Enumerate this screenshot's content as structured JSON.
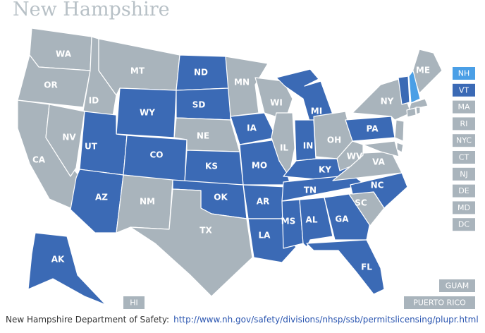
{
  "title": "New Hampshire",
  "colors": {
    "selected": "#4a9fe6",
    "reciprocal": "#3b6ab5",
    "other": "#a9b4bc"
  },
  "states": [
    {
      "label": "WA",
      "status": "other"
    },
    {
      "label": "OR",
      "status": "other"
    },
    {
      "label": "CA",
      "status": "other"
    },
    {
      "label": "NV",
      "status": "other"
    },
    {
      "label": "ID",
      "status": "other"
    },
    {
      "label": "MT",
      "status": "other"
    },
    {
      "label": "WY",
      "status": "reciprocal"
    },
    {
      "label": "UT",
      "status": "reciprocal"
    },
    {
      "label": "CO",
      "status": "reciprocal"
    },
    {
      "label": "AZ",
      "status": "reciprocal"
    },
    {
      "label": "NM",
      "status": "other"
    },
    {
      "label": "ND",
      "status": "reciprocal"
    },
    {
      "label": "SD",
      "status": "reciprocal"
    },
    {
      "label": "NE",
      "status": "other"
    },
    {
      "label": "KS",
      "status": "reciprocal"
    },
    {
      "label": "OK",
      "status": "reciprocal"
    },
    {
      "label": "TX",
      "status": "other"
    },
    {
      "label": "MN",
      "status": "other"
    },
    {
      "label": "IA",
      "status": "reciprocal"
    },
    {
      "label": "MO",
      "status": "reciprocal"
    },
    {
      "label": "AR",
      "status": "reciprocal"
    },
    {
      "label": "LA",
      "status": "reciprocal"
    },
    {
      "label": "WI",
      "status": "other"
    },
    {
      "label": "IL",
      "status": "other"
    },
    {
      "label": "MI",
      "status": "reciprocal"
    },
    {
      "label": "IN",
      "status": "reciprocal"
    },
    {
      "label": "OH",
      "status": "other"
    },
    {
      "label": "KY",
      "status": "reciprocal"
    },
    {
      "label": "TN",
      "status": "reciprocal"
    },
    {
      "label": "MS",
      "status": "reciprocal"
    },
    {
      "label": "AL",
      "status": "reciprocal"
    },
    {
      "label": "GA",
      "status": "reciprocal"
    },
    {
      "label": "FL",
      "status": "reciprocal"
    },
    {
      "label": "SC",
      "status": "other"
    },
    {
      "label": "NC",
      "status": "reciprocal"
    },
    {
      "label": "VA",
      "status": "other"
    },
    {
      "label": "WV",
      "status": "other"
    },
    {
      "label": "PA",
      "status": "reciprocal"
    },
    {
      "label": "NY",
      "status": "other"
    },
    {
      "label": "ME",
      "status": "other"
    },
    {
      "label": "AK",
      "status": "reciprocal"
    }
  ],
  "small_states": [
    {
      "label": "NH",
      "status": "selected"
    },
    {
      "label": "VT",
      "status": "reciprocal"
    },
    {
      "label": "MA",
      "status": "other"
    },
    {
      "label": "RI",
      "status": "other"
    },
    {
      "label": "NYC",
      "status": "other"
    },
    {
      "label": "CT",
      "status": "other"
    },
    {
      "label": "NJ",
      "status": "other"
    },
    {
      "label": "DE",
      "status": "other"
    },
    {
      "label": "MD",
      "status": "other"
    },
    {
      "label": "DC",
      "status": "other"
    }
  ],
  "territories": [
    {
      "label": "GUAM",
      "status": "other"
    },
    {
      "label": "PUERTO RICO",
      "status": "other"
    },
    {
      "label": "HI",
      "status": "other"
    }
  ],
  "footer": {
    "source": "New Hampshire Department of Safety:",
    "url": "http://www.nh.gov/safety/divisions/nhsp/ssb/permitslicensing/plupr.html"
  }
}
